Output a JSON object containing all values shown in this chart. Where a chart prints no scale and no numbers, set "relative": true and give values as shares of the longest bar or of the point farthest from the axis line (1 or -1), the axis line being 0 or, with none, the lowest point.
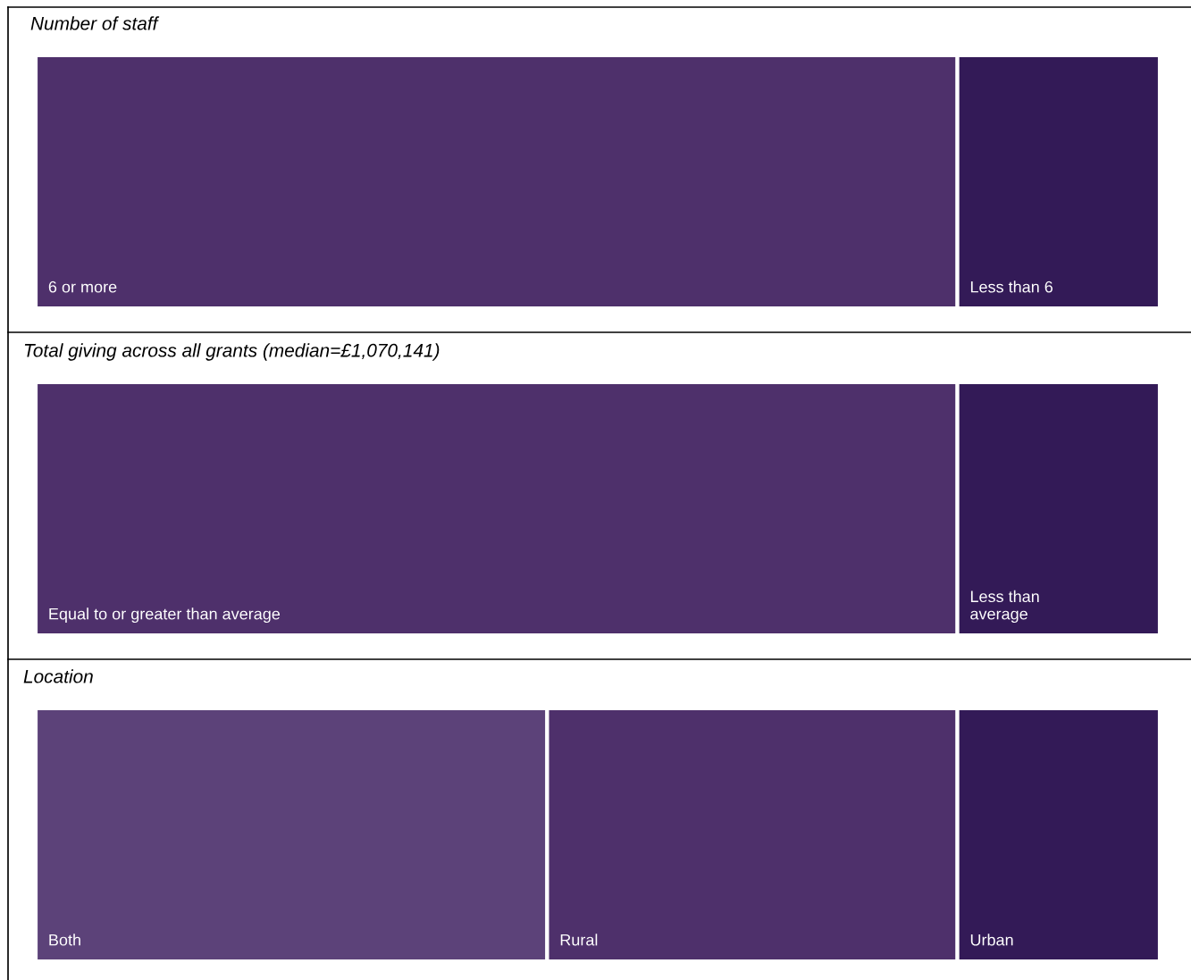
{
  "chart_data": [
    {
      "type": "bar",
      "orientation": "horizontal",
      "stacked": true,
      "relative": true,
      "title": "Number of staff",
      "categories": [
        null
      ],
      "series": [
        {
          "name": "6 or more",
          "color": "#4e306b",
          "values": [
            0.82
          ]
        },
        {
          "name": "Less than 6",
          "color": "#331a57",
          "values": [
            0.18
          ]
        }
      ]
    },
    {
      "type": "bar",
      "orientation": "horizontal",
      "stacked": true,
      "relative": true,
      "title": "Total giving across all grants (median=£1,070,141)",
      "categories": [
        null
      ],
      "series": [
        {
          "name": "Equal to or greater than average",
          "color": "#4e306b",
          "values": [
            0.82
          ]
        },
        {
          "name": "Less than\naverage",
          "color": "#331a57",
          "values": [
            0.18
          ]
        }
      ]
    },
    {
      "type": "bar",
      "orientation": "horizontal",
      "stacked": true,
      "relative": true,
      "title": "Location",
      "categories": [
        null
      ],
      "series": [
        {
          "name": "Both",
          "color": "#5c4279",
          "values": [
            0.455
          ]
        },
        {
          "name": "Rural",
          "color": "#4e306b",
          "values": [
            0.365
          ]
        },
        {
          "name": "Urban",
          "color": "#331a57",
          "values": [
            0.18
          ]
        }
      ]
    }
  ]
}
